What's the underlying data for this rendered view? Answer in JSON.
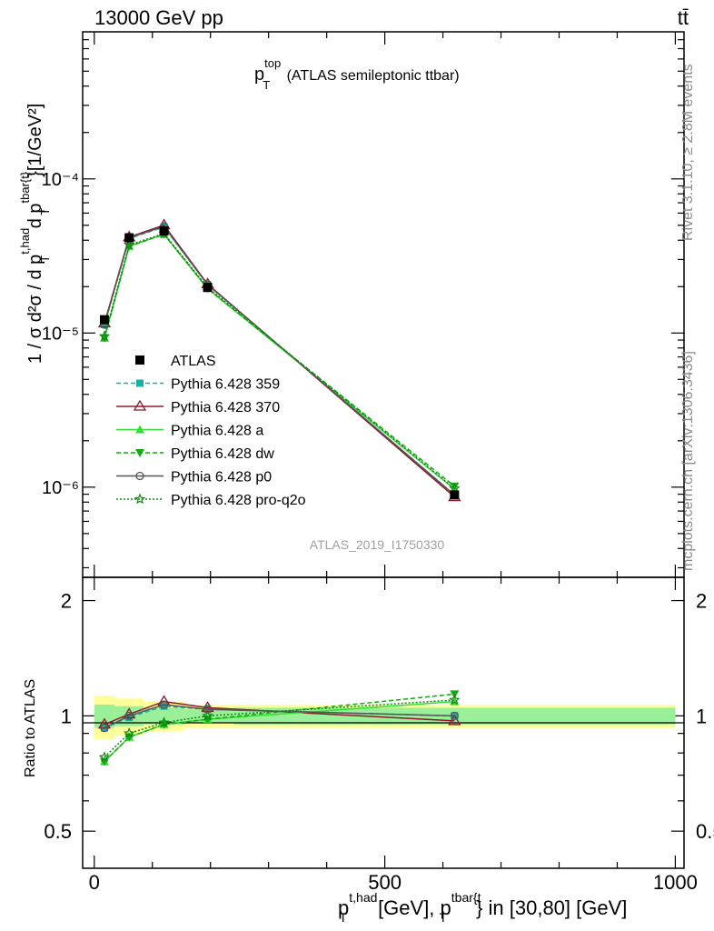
{
  "header": {
    "left": "13000 GeV pp",
    "right": "tt̄"
  },
  "plot_title": {
    "main": "p",
    "sup": "top",
    "sub": "T",
    "rest": " (ATLAS semileptonic ttbar)"
  },
  "analysis_id": "ATLAS_2019_I1750330",
  "side_texts": {
    "rivet": "Rivet 3.1.10, ≥ 2.8M events",
    "mcplots": "mcplots.cern.ch [arXiv:1306.3436]"
  },
  "axis_labels": {
    "y_main_text": "1 / σ d²σ / d p",
    "y_main_sup1": "t,had",
    "y_main_sub1": "T",
    "y_main_mid": " d p",
    "y_main_sup2": "tbar{t}",
    "y_main_sub2": "T",
    "y_main_unit": "}[1/GeV²]",
    "y_ratio": "Ratio to ATLAS",
    "x_p": "p",
    "x_sup1": "t,had",
    "x_sub1": "T",
    "x_mid": " [GeV], p",
    "x_sup2": "tbar{t",
    "x_sub2": "T",
    "x_end": "} in [30,80] [GeV]"
  },
  "main_y_ticks": [
    "10⁻⁴",
    "10⁻⁵",
    "10⁻⁶"
  ],
  "ratio_y_ticks": [
    "2",
    "1",
    "0.5"
  ],
  "x_ticks": [
    "0",
    "500",
    "1000"
  ],
  "chart_data": {
    "type": "line",
    "xlim": [
      -20,
      1015
    ],
    "ylim_main": [
      2.6e-07,
      0.0009
    ],
    "ylim_ratio": [
      0.4,
      2.3
    ],
    "y_scale": "log",
    "x": [
      17.5,
      60,
      120,
      195,
      620
    ],
    "atlas": {
      "name": "ATLAS",
      "values": [
        1.22e-05,
        4.15e-05,
        4.6e-05,
        1.98e-05,
        8.9e-07
      ],
      "bins": [
        [
          0,
          35
        ],
        [
          35,
          85
        ],
        [
          85,
          155
        ],
        [
          155,
          240
        ],
        [
          240,
          1000
        ]
      ],
      "band_stat": [
        0.07,
        0.06,
        0.05,
        0.04,
        0.05
      ],
      "band_tot": [
        0.13,
        0.11,
        0.09,
        0.07,
        0.07
      ]
    },
    "series": [
      {
        "name": "Pythia 6.428 359",
        "color": "#1ab0a0",
        "dash": "5,3",
        "marker": "square",
        "ratio": [
          0.93,
          0.99,
          1.06,
          1.04,
          1.0
        ]
      },
      {
        "name": "Pythia 6.428 370",
        "color": "#8b1a2a",
        "dash": "",
        "marker": "triangle-open",
        "ratio": [
          0.95,
          1.01,
          1.09,
          1.05,
          0.97
        ]
      },
      {
        "name": "Pythia 6.428 a",
        "color": "#33dd33",
        "dash": "",
        "marker": "triangle",
        "ratio": [
          0.76,
          0.88,
          0.95,
          0.98,
          1.09
        ]
      },
      {
        "name": "Pythia 6.428 dw",
        "color": "#11aa11",
        "dash": "5,3",
        "marker": "triangle-down",
        "ratio": [
          0.76,
          0.88,
          0.95,
          0.98,
          1.14
        ]
      },
      {
        "name": "Pythia 6.428 p0",
        "color": "#555555",
        "dash": "",
        "marker": "circle-open",
        "ratio": [
          0.93,
          1.0,
          1.07,
          1.04,
          1.0
        ]
      },
      {
        "name": "Pythia 6.428 pro-q2o",
        "color": "#118811",
        "dash": "2,2",
        "marker": "star",
        "ratio": [
          0.78,
          0.9,
          0.96,
          1.0,
          1.1
        ]
      }
    ]
  }
}
